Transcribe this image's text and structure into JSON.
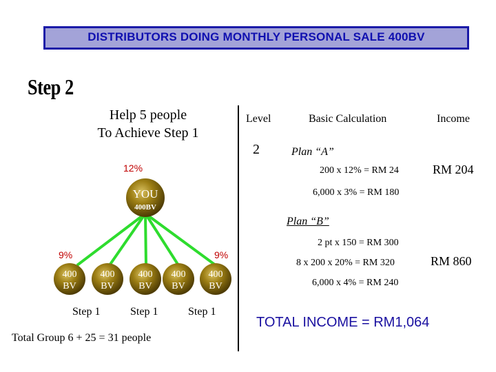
{
  "banner": {
    "title": "DISTRIBUTORS DOING MONTHLY PERSONAL SALE 400BV"
  },
  "step_title": "Step 2",
  "help": {
    "line1": "Help 5 people",
    "line2": "To Achieve Step 1"
  },
  "table": {
    "headers": {
      "level": "Level",
      "calc": "Basic Calculation",
      "income": "Income"
    },
    "level_value": "2",
    "plan_a": {
      "label": "Plan “A”",
      "lines": [
        "200 x 12% = RM 24",
        "6,000 x 3% = RM 180"
      ],
      "income": "RM 204"
    },
    "plan_b": {
      "label": "Plan “B”",
      "lines": [
        "2 pt x 150 = RM 300",
        "8 x 200 x 20% = RM 320",
        "6,000 x 4% = RM 240"
      ],
      "income": "RM 860"
    }
  },
  "tree": {
    "top_percent": "12%",
    "you_label": "YOU",
    "you_bv": "400BV",
    "left_percent": "9%",
    "right_percent": "9%",
    "children": [
      {
        "top": "400",
        "bottom": "BV"
      },
      {
        "top": "400",
        "bottom": "BV"
      },
      {
        "top": "400",
        "bottom": "BV"
      },
      {
        "top": "400",
        "bottom": "BV"
      },
      {
        "top": "400",
        "bottom": "BV"
      }
    ],
    "steps": [
      "Step 1",
      "Step 1",
      "Step 1"
    ]
  },
  "total_group": "Total Group 6 + 25 = 31 people",
  "total_income": "TOTAL INCOME = RM1,064",
  "colors": {
    "banner_bg": "#a3a3d8",
    "banner_text": "#1010b0",
    "line_green": "#2edc2e",
    "ball": "#8a6e0e",
    "percent": "#c00000",
    "total_income": "#1a10a0"
  }
}
